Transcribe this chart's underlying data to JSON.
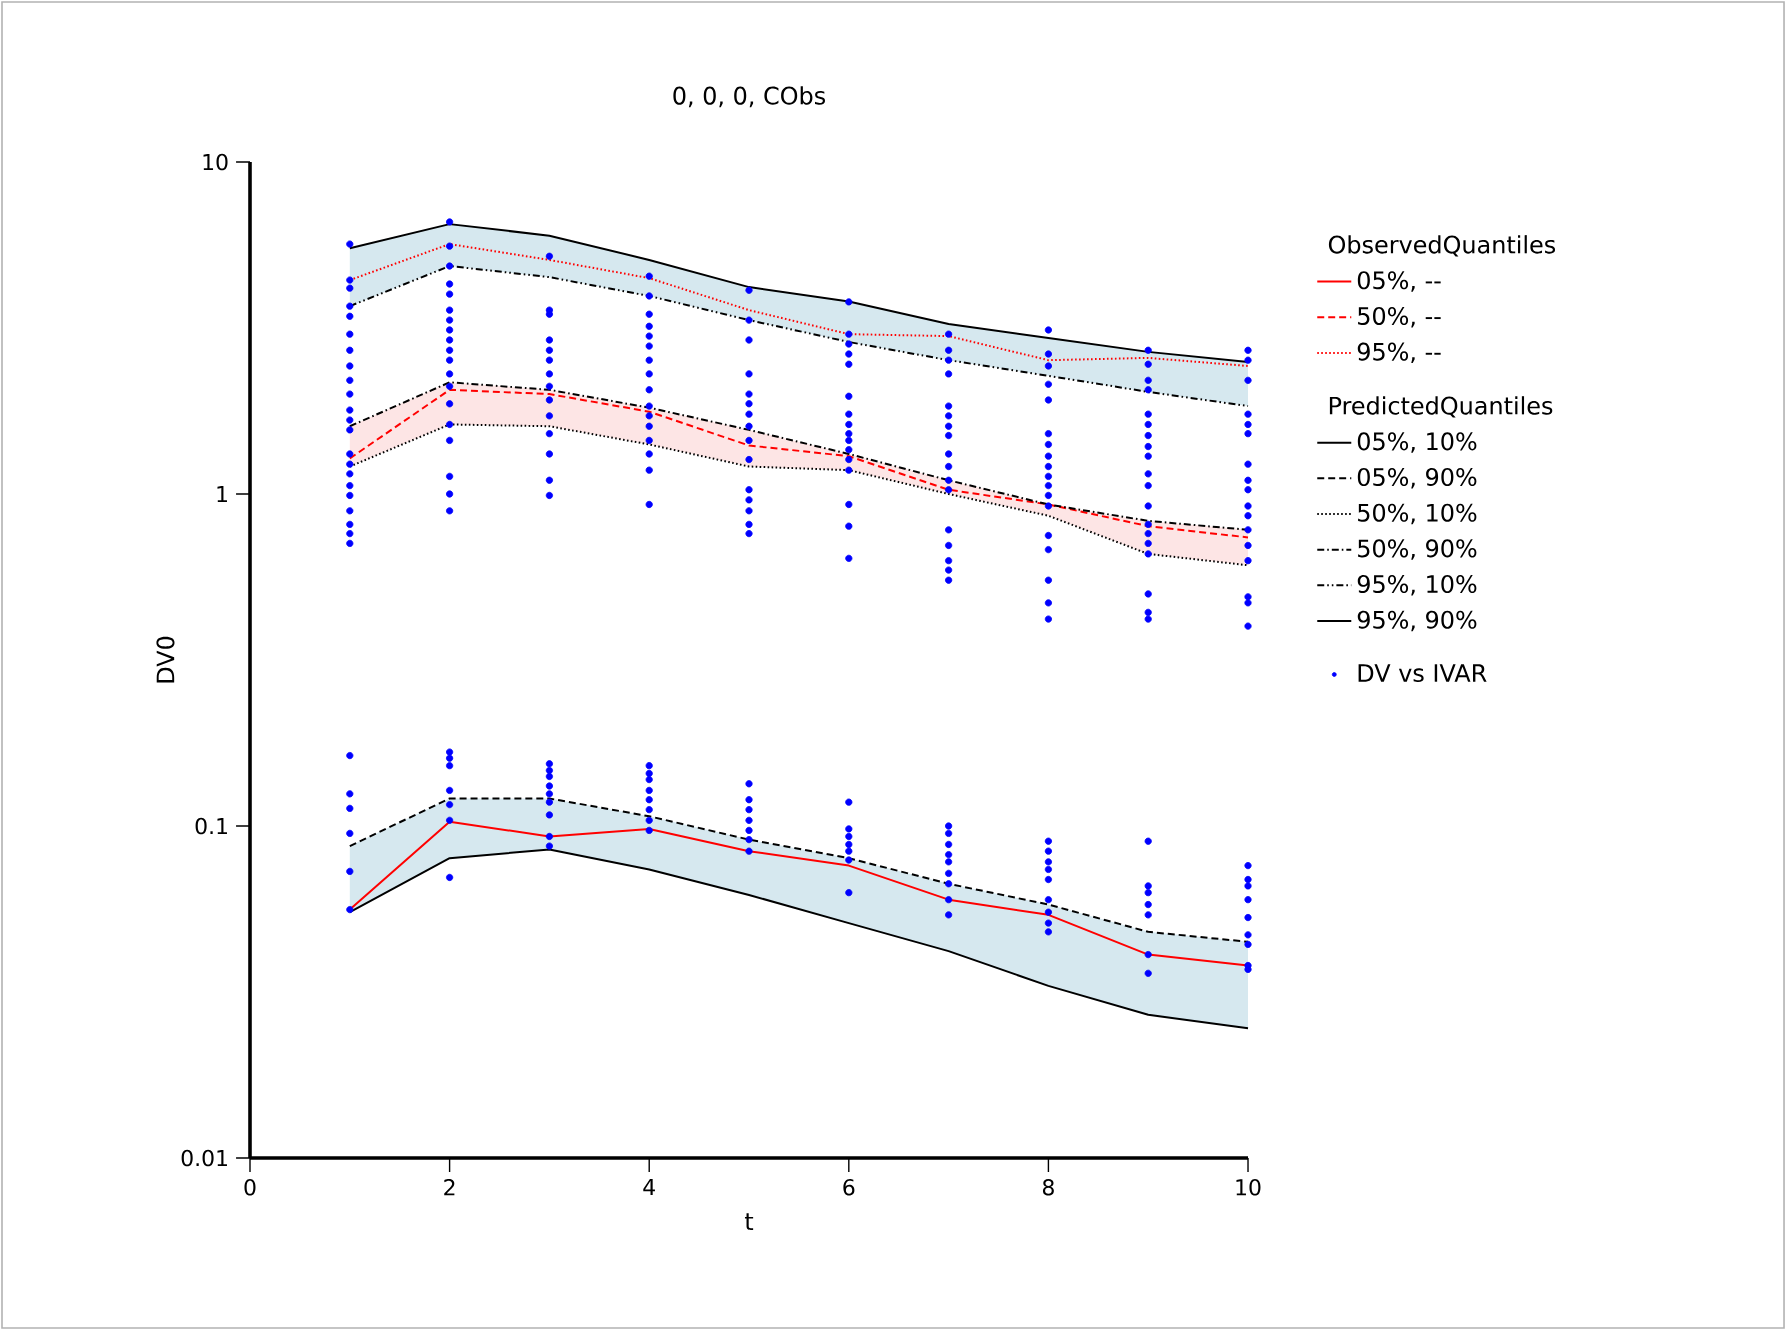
{
  "chart_data": {
    "type": "line",
    "title": "0, 0, 0, CObs",
    "xlabel": "t",
    "ylabel": "DV0",
    "annotations": [
      "ObservedQuantiles",
      "PredictedQuantiles"
    ],
    "x": [
      1,
      2,
      3,
      4,
      5,
      6,
      7,
      8,
      9,
      10
    ],
    "xlim": [
      0,
      10
    ],
    "xticks": [
      0,
      2,
      4,
      6,
      8,
      10
    ],
    "ylim": [
      0.01,
      10
    ],
    "yticks": [
      0.01,
      0.1,
      1,
      10
    ],
    "log": "y",
    "legend": "right",
    "series": [
      {
        "name": "05%, --",
        "color": "#ff0000",
        "line_style": "solid",
        "values": [
          0.056,
          0.103,
          0.093,
          0.098,
          0.084,
          0.076,
          0.06,
          0.054,
          0.041,
          0.038
        ],
        "lower": [
          0.055,
          0.08,
          0.085,
          0.074,
          0.062,
          0.051,
          0.042,
          0.033,
          0.027,
          0.0246
        ],
        "upper": [
          0.087,
          0.121,
          0.121,
          0.107,
          0.091,
          0.08,
          0.067,
          0.058,
          0.048,
          0.0448
        ]
      },
      {
        "name": "50%, --",
        "color": "#ff0000",
        "line_style": "dashed",
        "values": [
          1.28,
          2.06,
          2.0,
          1.77,
          1.4,
          1.3,
          1.03,
          0.93,
          0.8,
          0.74
        ],
        "lower": [
          1.21,
          1.62,
          1.6,
          1.41,
          1.21,
          1.18,
          1.0,
          0.86,
          0.66,
          0.61
        ],
        "upper": [
          1.6,
          2.17,
          2.06,
          1.82,
          1.56,
          1.32,
          1.1,
          0.93,
          0.83,
          0.78
        ]
      },
      {
        "name": "95%, --",
        "color": "#ff0000",
        "line_style": "dotted",
        "values": [
          4.41,
          5.66,
          5.07,
          4.47,
          3.58,
          3.03,
          2.99,
          2.53,
          2.57,
          2.43
        ],
        "lower": [
          3.68,
          4.86,
          4.5,
          3.95,
          3.34,
          2.87,
          2.53,
          2.27,
          2.03,
          1.84
        ],
        "upper": [
          5.5,
          6.5,
          6.0,
          5.07,
          4.2,
          3.8,
          3.25,
          2.95,
          2.68,
          2.5
        ]
      },
      {
        "name": "05%, 10%",
        "color": "#000000",
        "line_style": "solid",
        "values": [
          0.055,
          0.08,
          0.085,
          0.074,
          0.062,
          0.051,
          0.042,
          0.033,
          0.027,
          0.0246
        ]
      },
      {
        "name": "05%, 90%",
        "color": "#000000",
        "line_style": "dashed",
        "values": [
          0.087,
          0.121,
          0.121,
          0.107,
          0.091,
          0.08,
          0.067,
          0.058,
          0.048,
          0.0448
        ]
      },
      {
        "name": "50%, 10%",
        "color": "#000000",
        "line_style": "dotted",
        "values": [
          1.21,
          1.62,
          1.6,
          1.41,
          1.21,
          1.18,
          1.0,
          0.86,
          0.66,
          0.61
        ]
      },
      {
        "name": "50%, 90%",
        "color": "#000000",
        "line_style": "dashdot",
        "values": [
          1.6,
          2.17,
          2.06,
          1.82,
          1.56,
          1.32,
          1.1,
          0.93,
          0.83,
          0.78
        ]
      },
      {
        "name": "95%, 10%",
        "color": "#000000",
        "line_style": "dashdotdot",
        "values": [
          3.68,
          4.86,
          4.5,
          3.95,
          3.34,
          2.87,
          2.53,
          2.27,
          2.03,
          1.84
        ]
      },
      {
        "name": "95%, 90%",
        "color": "#000000",
        "line_style": "solid",
        "values": [
          5.5,
          6.5,
          6.0,
          5.07,
          4.2,
          3.8,
          3.25,
          2.95,
          2.68,
          2.5
        ]
      },
      {
        "name": "DV vs IVAR",
        "type": "scatter",
        "color": "#0000ff",
        "x": [
          1,
          1,
          1,
          1,
          1,
          1,
          1,
          1,
          1,
          1,
          1,
          1,
          1,
          1,
          1,
          1,
          1,
          1,
          1,
          1,
          1,
          1,
          1,
          1,
          1,
          1,
          1,
          1,
          2,
          2,
          2,
          2,
          2,
          2,
          2,
          2,
          2,
          2,
          2,
          2,
          2,
          2,
          2,
          2,
          2,
          2,
          2,
          2,
          2,
          2,
          2,
          2,
          2,
          2,
          3,
          3,
          3,
          3,
          3,
          3,
          3,
          3,
          3,
          3,
          3,
          3,
          3,
          3,
          3,
          3,
          3,
          3,
          3,
          3,
          3,
          3,
          3,
          4,
          4,
          4,
          4,
          4,
          4,
          4,
          4,
          4,
          4,
          4,
          4,
          4,
          4,
          4,
          4,
          4,
          4,
          4,
          4,
          4,
          4,
          4,
          4,
          5,
          5,
          5,
          5,
          5,
          5,
          5,
          5,
          5,
          5,
          5,
          5,
          5,
          5,
          5,
          5,
          5,
          5,
          5,
          5,
          5,
          5,
          6,
          6,
          6,
          6,
          6,
          6,
          6,
          6,
          6,
          6,
          6,
          6,
          6,
          6,
          6,
          6,
          6,
          6,
          6,
          6,
          6,
          6,
          6,
          7,
          7,
          7,
          7,
          7,
          7,
          7,
          7,
          7,
          7,
          7,
          7,
          7,
          7,
          7,
          7,
          7,
          7,
          7,
          7,
          7,
          7,
          7,
          7,
          7,
          7,
          8,
          8,
          8,
          8,
          8,
          8,
          8,
          8,
          8,
          8,
          8,
          8,
          8,
          8,
          8,
          8,
          8,
          8,
          8,
          8,
          8,
          8,
          8,
          8,
          8,
          8,
          8,
          9,
          9,
          9,
          9,
          9,
          9,
          9,
          9,
          9,
          9,
          9,
          9,
          9,
          9,
          9,
          9,
          9,
          9,
          9,
          9,
          9,
          9,
          9,
          9,
          9,
          9,
          10,
          10,
          10,
          10,
          10,
          10,
          10,
          10,
          10,
          10,
          10,
          10,
          10,
          10,
          10,
          10,
          10,
          10,
          10,
          10,
          10,
          10,
          10,
          10,
          10,
          10
        ],
        "values": [
          5.66,
          4.41,
          4.17,
          3.68,
          3.43,
          3.03,
          2.71,
          2.43,
          2.2,
          2.0,
          1.79,
          1.67,
          1.56,
          1.32,
          1.23,
          1.15,
          1.06,
          0.99,
          0.89,
          0.81,
          0.76,
          0.71,
          0.163,
          0.125,
          0.113,
          0.095,
          0.073,
          0.056,
          6.6,
          5.58,
          4.86,
          4.29,
          4.0,
          3.58,
          3.34,
          3.12,
          2.91,
          2.71,
          2.53,
          2.3,
          2.11,
          1.87,
          1.62,
          1.45,
          1.13,
          1.0,
          0.89,
          0.167,
          0.16,
          0.152,
          0.128,
          0.116,
          0.104,
          0.07,
          5.2,
          3.58,
          3.48,
          2.91,
          2.71,
          2.53,
          2.3,
          2.11,
          1.92,
          1.72,
          1.52,
          1.32,
          1.1,
          0.99,
          0.154,
          0.147,
          0.141,
          0.132,
          0.125,
          0.118,
          0.108,
          0.093,
          0.087,
          4.53,
          3.95,
          3.48,
          3.2,
          2.99,
          2.79,
          2.53,
          2.3,
          2.06,
          1.84,
          1.72,
          1.6,
          1.45,
          1.32,
          1.18,
          0.93,
          0.152,
          0.144,
          0.138,
          0.128,
          0.12,
          0.112,
          0.104,
          0.097,
          4.11,
          3.34,
          2.91,
          2.3,
          2.0,
          1.87,
          1.74,
          1.6,
          1.45,
          1.27,
          1.03,
          0.96,
          0.89,
          0.81,
          0.76,
          0.134,
          0.12,
          0.112,
          0.104,
          0.097,
          0.091,
          0.084,
          3.79,
          3.03,
          2.83,
          2.64,
          2.46,
          1.97,
          1.74,
          1.62,
          1.52,
          1.45,
          1.36,
          1.27,
          1.18,
          0.93,
          0.8,
          0.64,
          0.118,
          0.098,
          0.093,
          0.088,
          0.084,
          0.079,
          0.063,
          3.03,
          2.71,
          2.53,
          2.3,
          1.84,
          1.72,
          1.6,
          1.5,
          1.32,
          1.21,
          1.1,
          1.03,
          0.78,
          0.7,
          0.63,
          0.59,
          0.55,
          0.1,
          0.095,
          0.088,
          0.082,
          0.078,
          0.072,
          0.067,
          0.06,
          0.054,
          3.12,
          2.64,
          2.43,
          2.14,
          1.92,
          1.52,
          1.41,
          1.3,
          1.21,
          1.13,
          1.06,
          0.99,
          0.92,
          0.75,
          0.68,
          0.55,
          0.47,
          0.42,
          0.09,
          0.084,
          0.078,
          0.074,
          0.069,
          0.06,
          0.055,
          0.051,
          0.048,
          2.71,
          2.46,
          2.2,
          2.06,
          1.74,
          1.62,
          1.5,
          1.39,
          1.3,
          1.15,
          1.06,
          0.92,
          0.81,
          0.76,
          0.71,
          0.66,
          0.5,
          0.44,
          0.42,
          0.09,
          0.066,
          0.063,
          0.058,
          0.054,
          0.041,
          0.036,
          2.71,
          2.53,
          2.2,
          1.74,
          1.62,
          1.52,
          1.23,
          1.1,
          1.03,
          0.92,
          0.86,
          0.78,
          0.7,
          0.63,
          0.49,
          0.47,
          0.4,
          0.076,
          0.069,
          0.066,
          0.06,
          0.053,
          0.047,
          0.044,
          0.038,
          0.037
        ]
      }
    ]
  }
}
